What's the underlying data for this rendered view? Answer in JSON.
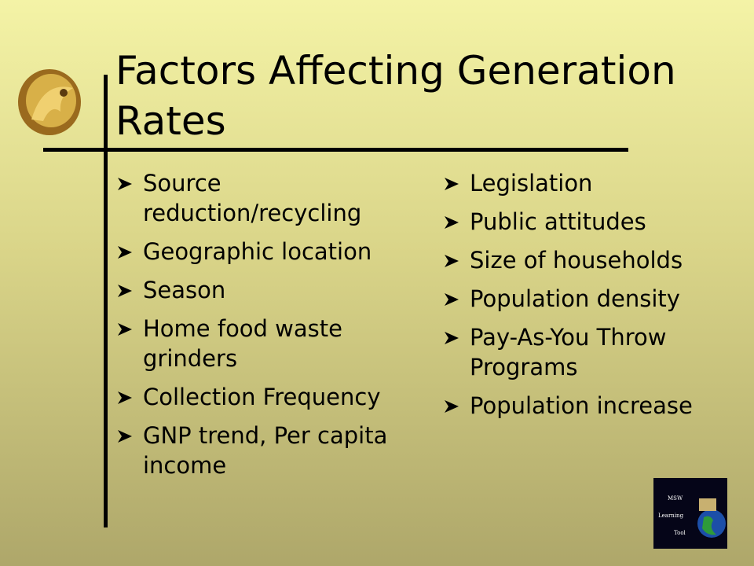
{
  "title": "Factors Affecting Generation Rates",
  "left_bullets": [
    "Source reduction/recycling",
    "Geographic location",
    "Season",
    "Home food waste grinders",
    "Collection Frequency",
    "GNP trend, Per capita income"
  ],
  "right_bullets": [
    "Legislation",
    "Public attitudes",
    "Size of households",
    "Population density",
    "Pay-As-You Throw Programs",
    "Population increase"
  ],
  "logo_text": [
    "MSW",
    "Learning",
    "Tool"
  ]
}
